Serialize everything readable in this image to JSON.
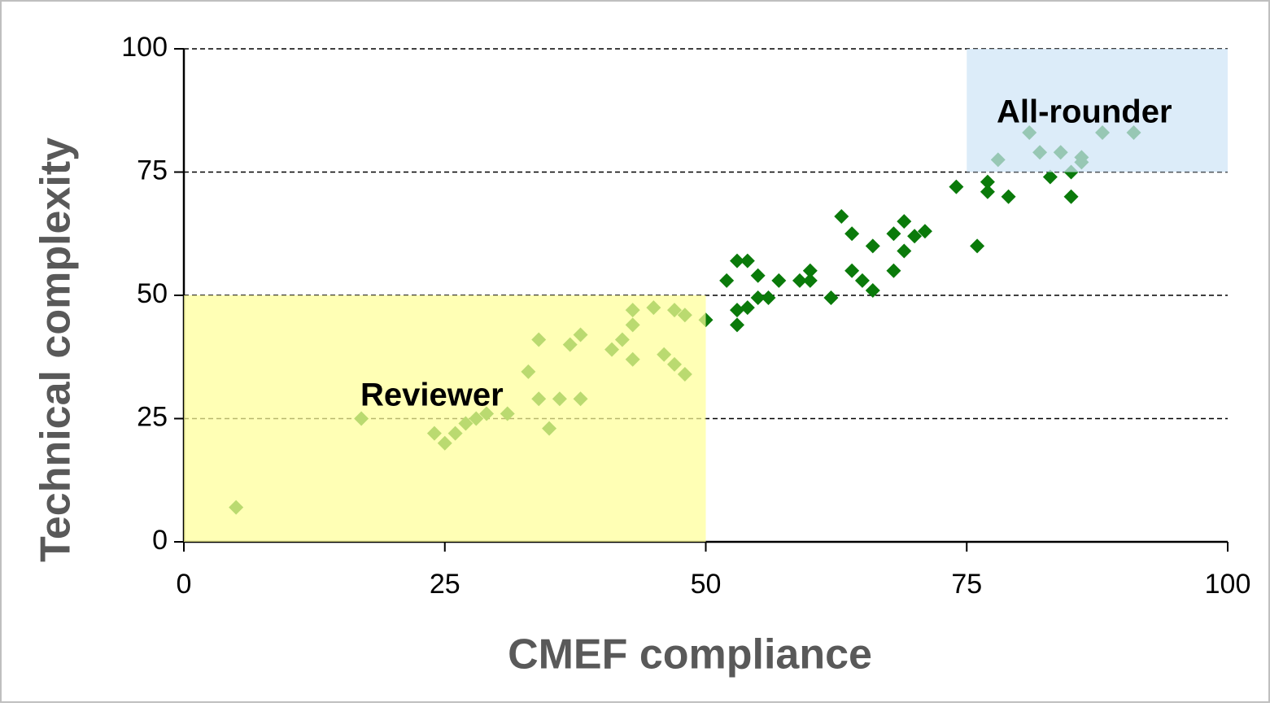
{
  "chart_data": {
    "type": "scatter",
    "x_label": "CMEF compliance",
    "y_label": "Technical complexity",
    "series": [
      {
        "name": "Points",
        "color": "#0a7a0a",
        "x": [
          5,
          17,
          24,
          25,
          26,
          27,
          28,
          29,
          31,
          33,
          34,
          34,
          35,
          36,
          37,
          38,
          38,
          41,
          42,
          43,
          43,
          43,
          45,
          46,
          47,
          47,
          48,
          48,
          50,
          52,
          53,
          53,
          53,
          54,
          54,
          55,
          55,
          56,
          57,
          59,
          60,
          60,
          62,
          63,
          64,
          64,
          65,
          66,
          66,
          68,
          68,
          69,
          69,
          70,
          71,
          74,
          76,
          77,
          77,
          78,
          79,
          81,
          82,
          83,
          84,
          85,
          85,
          86,
          86,
          88,
          91
        ],
        "values": [
          7,
          25,
          22,
          20,
          22,
          24,
          25,
          26,
          26,
          34.5,
          41,
          29,
          23,
          29,
          40,
          42,
          29,
          39,
          41,
          47,
          44,
          37,
          47.5,
          38,
          47,
          36,
          46,
          34,
          45,
          53,
          57,
          47,
          44,
          57,
          47.5,
          54,
          49.5,
          49.5,
          53,
          53,
          55,
          53,
          49.5,
          66,
          62.5,
          55,
          53,
          60,
          51,
          62.5,
          55,
          65,
          59,
          62,
          63,
          72,
          60,
          73,
          71,
          77.5,
          70,
          83,
          79,
          74,
          79,
          75,
          70,
          77,
          78,
          83,
          83
        ]
      }
    ],
    "regions": [
      {
        "xlim": [
          0,
          50
        ],
        "ylim": [
          0,
          50
        ],
        "color": "#ffff99"
      },
      {
        "xlim": [
          75,
          100
        ],
        "ylim": [
          75,
          100
        ],
        "color": "#cfe5f7"
      }
    ],
    "annotations": [
      "Reviewer",
      "All-rounder"
    ],
    "xlim": [
      0,
      100
    ],
    "ylim": [
      0,
      100
    ],
    "xticks": [
      0,
      25,
      50,
      75,
      100
    ],
    "yticks": [
      0,
      25,
      50,
      75,
      100
    ],
    "grid": true
  }
}
